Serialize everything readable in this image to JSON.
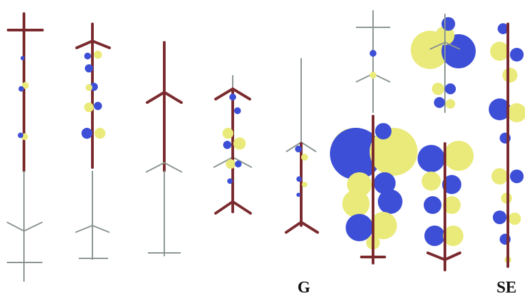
{
  "labels": {
    "g": "G",
    "se": "SE"
  }
}
